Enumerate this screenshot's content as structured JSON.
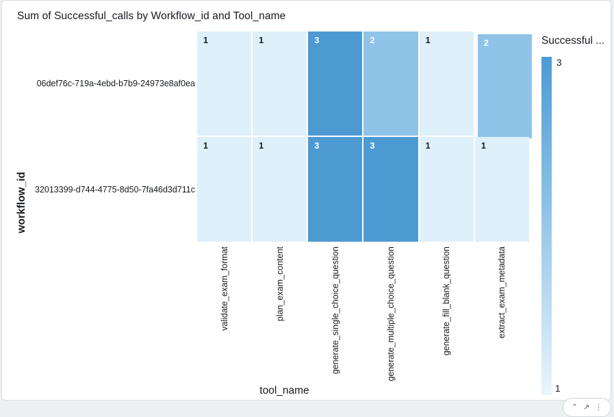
{
  "page": {
    "background": "#edf0f0",
    "card_border": "#d9dddd"
  },
  "chart": {
    "title": "Sum of Successful_calls by Workflow_id and Tool_name",
    "x_axis_title": "tool_name",
    "y_axis_title": "workflow_id",
    "legend": {
      "title": "Successful ...",
      "max_label": "3",
      "min_label": "1"
    }
  },
  "chart_data": {
    "type": "heatmap",
    "title": "Sum of Successful_calls by Workflow_id and Tool_name",
    "xlabel": "tool_name",
    "ylabel": "workflow_id",
    "x_categories": [
      "validate_exam_format",
      "plan_exam_content",
      "generate_single_choice_question",
      "generate_multiple_choice_question",
      "generate_fill_blank_question",
      "extract_exam_metadata"
    ],
    "y_categories": [
      "06def76c-719a-4ebd-b7b9-24973e8af0ea",
      "32013399-d744-4775-8d50-7fa46d3d711c"
    ],
    "values": [
      [
        1,
        1,
        3,
        2,
        1,
        2
      ],
      [
        1,
        1,
        3,
        3,
        1,
        1
      ]
    ],
    "value_range": [
      1,
      3
    ],
    "legend_title": "Successful ...",
    "legend_position": "right",
    "grid": false
  },
  "colors": {
    "scale": {
      "1": "#def0fa",
      "2": "#8fc3e8",
      "3": "#4d9ad3"
    },
    "legend_gradient_top": "#4d9ad3",
    "legend_gradient_bottom": "#eaf5fc",
    "text_dark": "#16191f",
    "text_light": "#ffffff"
  },
  "controls": {
    "icons": [
      {
        "name": "maximize-icon",
        "glyph": "⌃"
      },
      {
        "name": "export-icon",
        "glyph": "↗"
      },
      {
        "name": "menu-dots-icon",
        "glyph": "⋮"
      }
    ]
  }
}
